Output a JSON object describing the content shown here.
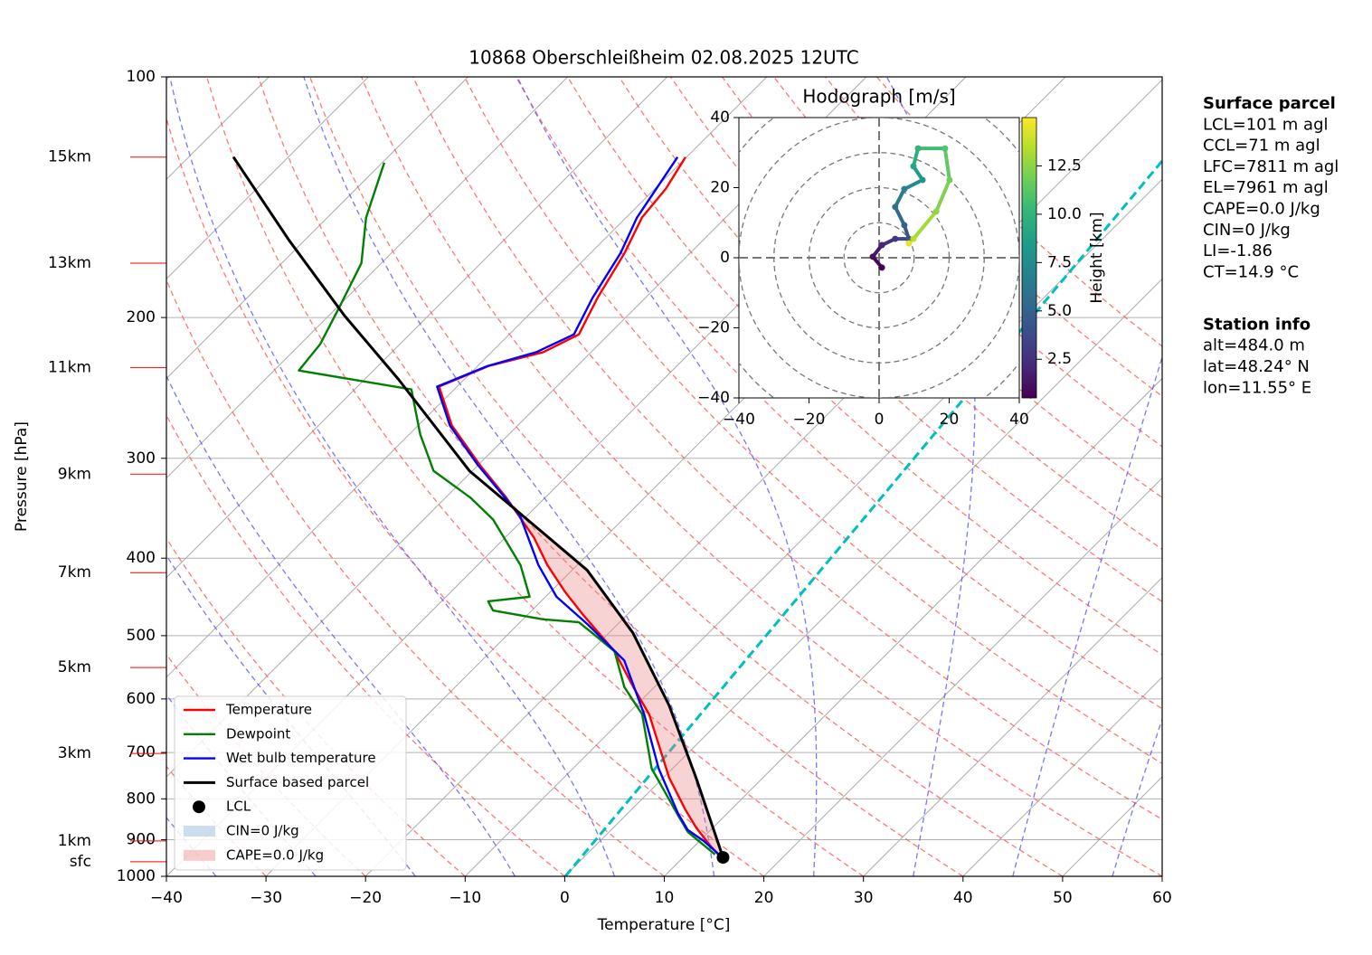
{
  "chart_data": {
    "type": "skewt",
    "title": "10868 Oberschleißheim 02.08.2025 12UTC",
    "xlabel": "Temperature [°C]",
    "ylabel": "Pressure [hPa]",
    "xlim": [
      -40,
      60
    ],
    "ylim": [
      1000,
      100
    ],
    "log_y": true,
    "xticks": [
      {
        "value": -40,
        "label": "−40"
      },
      {
        "value": -30,
        "label": "−30"
      },
      {
        "value": -20,
        "label": "−20"
      },
      {
        "value": -10,
        "label": "−10"
      },
      0,
      10,
      20,
      30,
      40,
      50,
      60
    ],
    "yticks": [
      100,
      200,
      300,
      400,
      500,
      600,
      700,
      800,
      900,
      1000
    ],
    "grid": true,
    "series": [
      {
        "name": "Temperature",
        "color": "#ff0000",
        "pressure": [
          947,
          915,
          869,
          825,
          753,
          627,
          580,
          523,
          471,
          441,
          408,
          377,
          336,
          306,
          273,
          244,
          230,
          221,
          210,
          189,
          166,
          150,
          138,
          126
        ],
        "temperature": [
          13.8,
          11.5,
          8.3,
          5.4,
          0.6,
          -7.8,
          -12.1,
          -17.6,
          -24.4,
          -28.5,
          -33.0,
          -37.1,
          -43.9,
          -49.8,
          -56.6,
          -61.8,
          -58.9,
          -54.8,
          -53.0,
          -54.8,
          -56.6,
          -58.4,
          -58.9,
          -60.1
        ]
      },
      {
        "name": "Dewpoint",
        "color": "#008000",
        "pressure": [
          939,
          880,
          835,
          733,
          627,
          580,
          523,
          496,
          481,
          477,
          465,
          453,
          447,
          408,
          358,
          336,
          311,
          280,
          246,
          233,
          216,
          194,
          171,
          150,
          128
        ],
        "temperature": [
          12.9,
          7.9,
          5.0,
          -2.1,
          -8.5,
          -13.0,
          -17.6,
          -21.7,
          -24.1,
          -28.0,
          -33.9,
          -35.3,
          -31.6,
          -35.7,
          -43.0,
          -47.5,
          -53.9,
          -58.9,
          -64.3,
          -77.5,
          -78.0,
          -79.8,
          -82.0,
          -86.1,
          -89.8
        ]
      },
      {
        "name": "Wet bulb temperature",
        "color": "#0000ff",
        "pressure": [
          939,
          903,
          875,
          835,
          733,
          627,
          537,
          484,
          447,
          408,
          354,
          306,
          273,
          244,
          230,
          221,
          210,
          189,
          166,
          150,
          126
        ],
        "temperature": [
          13.3,
          10.4,
          7.7,
          5.1,
          -1.4,
          -8.3,
          -15.7,
          -23.0,
          -28.9,
          -33.9,
          -40.7,
          -50.0,
          -56.8,
          -62.0,
          -59.0,
          -55.5,
          -53.5,
          -55.3,
          -57.0,
          -58.9,
          -60.9
        ]
      },
      {
        "name": "Surface based parcel",
        "color": "#000000",
        "pressure": [
          947,
          753,
          611,
          496,
          414,
          363,
          311,
          239,
          199,
          160,
          126
        ],
        "temperature": [
          14.0,
          3.3,
          -6.7,
          -17.6,
          -28.5,
          -38.5,
          -50.3,
          -66.6,
          -78.4,
          -91.6,
          -105.5
        ]
      }
    ],
    "lcl": {
      "name": "LCL",
      "pressure": 947,
      "temperature": 14.0
    },
    "cin_label": "CIN=0 J/kg",
    "cape_label": "CAPE=0.0 J/kg",
    "height_labels": [
      {
        "label": "15km",
        "pressure": 126
      },
      {
        "label": "13km",
        "pressure": 171
      },
      {
        "label": "11km",
        "pressure": 231
      },
      {
        "label": "9km",
        "pressure": 314
      },
      {
        "label": "7km",
        "pressure": 417
      },
      {
        "label": "5km",
        "pressure": 548
      },
      {
        "label": "3km",
        "pressure": 702
      },
      {
        "label": "1km",
        "pressure": 903
      },
      {
        "label": "sfc",
        "pressure": 959
      }
    ],
    "hodograph": {
      "title": "Hodograph [m/s]",
      "xlim": [
        -40,
        40
      ],
      "ylim": [
        -40,
        40
      ],
      "xticks": [
        {
          "value": -40,
          "label": "−40"
        },
        {
          "value": -20,
          "label": "−20"
        },
        0,
        20,
        40
      ],
      "yticks": [
        {
          "value": -40,
          "label": "−40"
        },
        {
          "value": -20,
          "label": "−20"
        },
        0,
        20,
        40
      ],
      "u": [
        0.8,
        -1.8,
        0.8,
        4.6,
        8.5,
        7.2,
        4.6,
        7.2,
        12.4,
        9.8,
        11.1,
        18.8,
        20.1,
        16.3,
        9.8,
        8.5
      ],
      "v": [
        -2.8,
        0.3,
        3.6,
        5.4,
        5.4,
        9.3,
        14.5,
        19.6,
        22.2,
        26.1,
        31.2,
        31.2,
        22.2,
        13.2,
        5.4,
        4.1
      ],
      "height": [
        0.5,
        1,
        2,
        3,
        4,
        5,
        6,
        7,
        8,
        9,
        10,
        11,
        11.8,
        12.5,
        13.5,
        14.5
      ],
      "colorbar": {
        "label": "Height [km]",
        "lim": [
          0.5,
          15
        ],
        "ticks": [
          2.5,
          {
            "value": 5,
            "label": "5.0"
          },
          7.5,
          {
            "value": 10,
            "label": "10.0"
          },
          12.5
        ]
      }
    },
    "info_panels": [
      {
        "title": "Surface parcel",
        "lines": [
          "LCL=101 m agl",
          "CCL=71 m agl",
          "LFC=7811 m agl",
          "EL=7961 m agl",
          "CAPE=0.0 J/kg",
          "CIN=0 J/kg",
          "LI=-1.86",
          "CT=14.9 °C"
        ]
      },
      {
        "title": "Station info",
        "lines": [
          "alt=484.0 m",
          "lat=48.24° N",
          "lon=11.55° E"
        ]
      }
    ]
  }
}
